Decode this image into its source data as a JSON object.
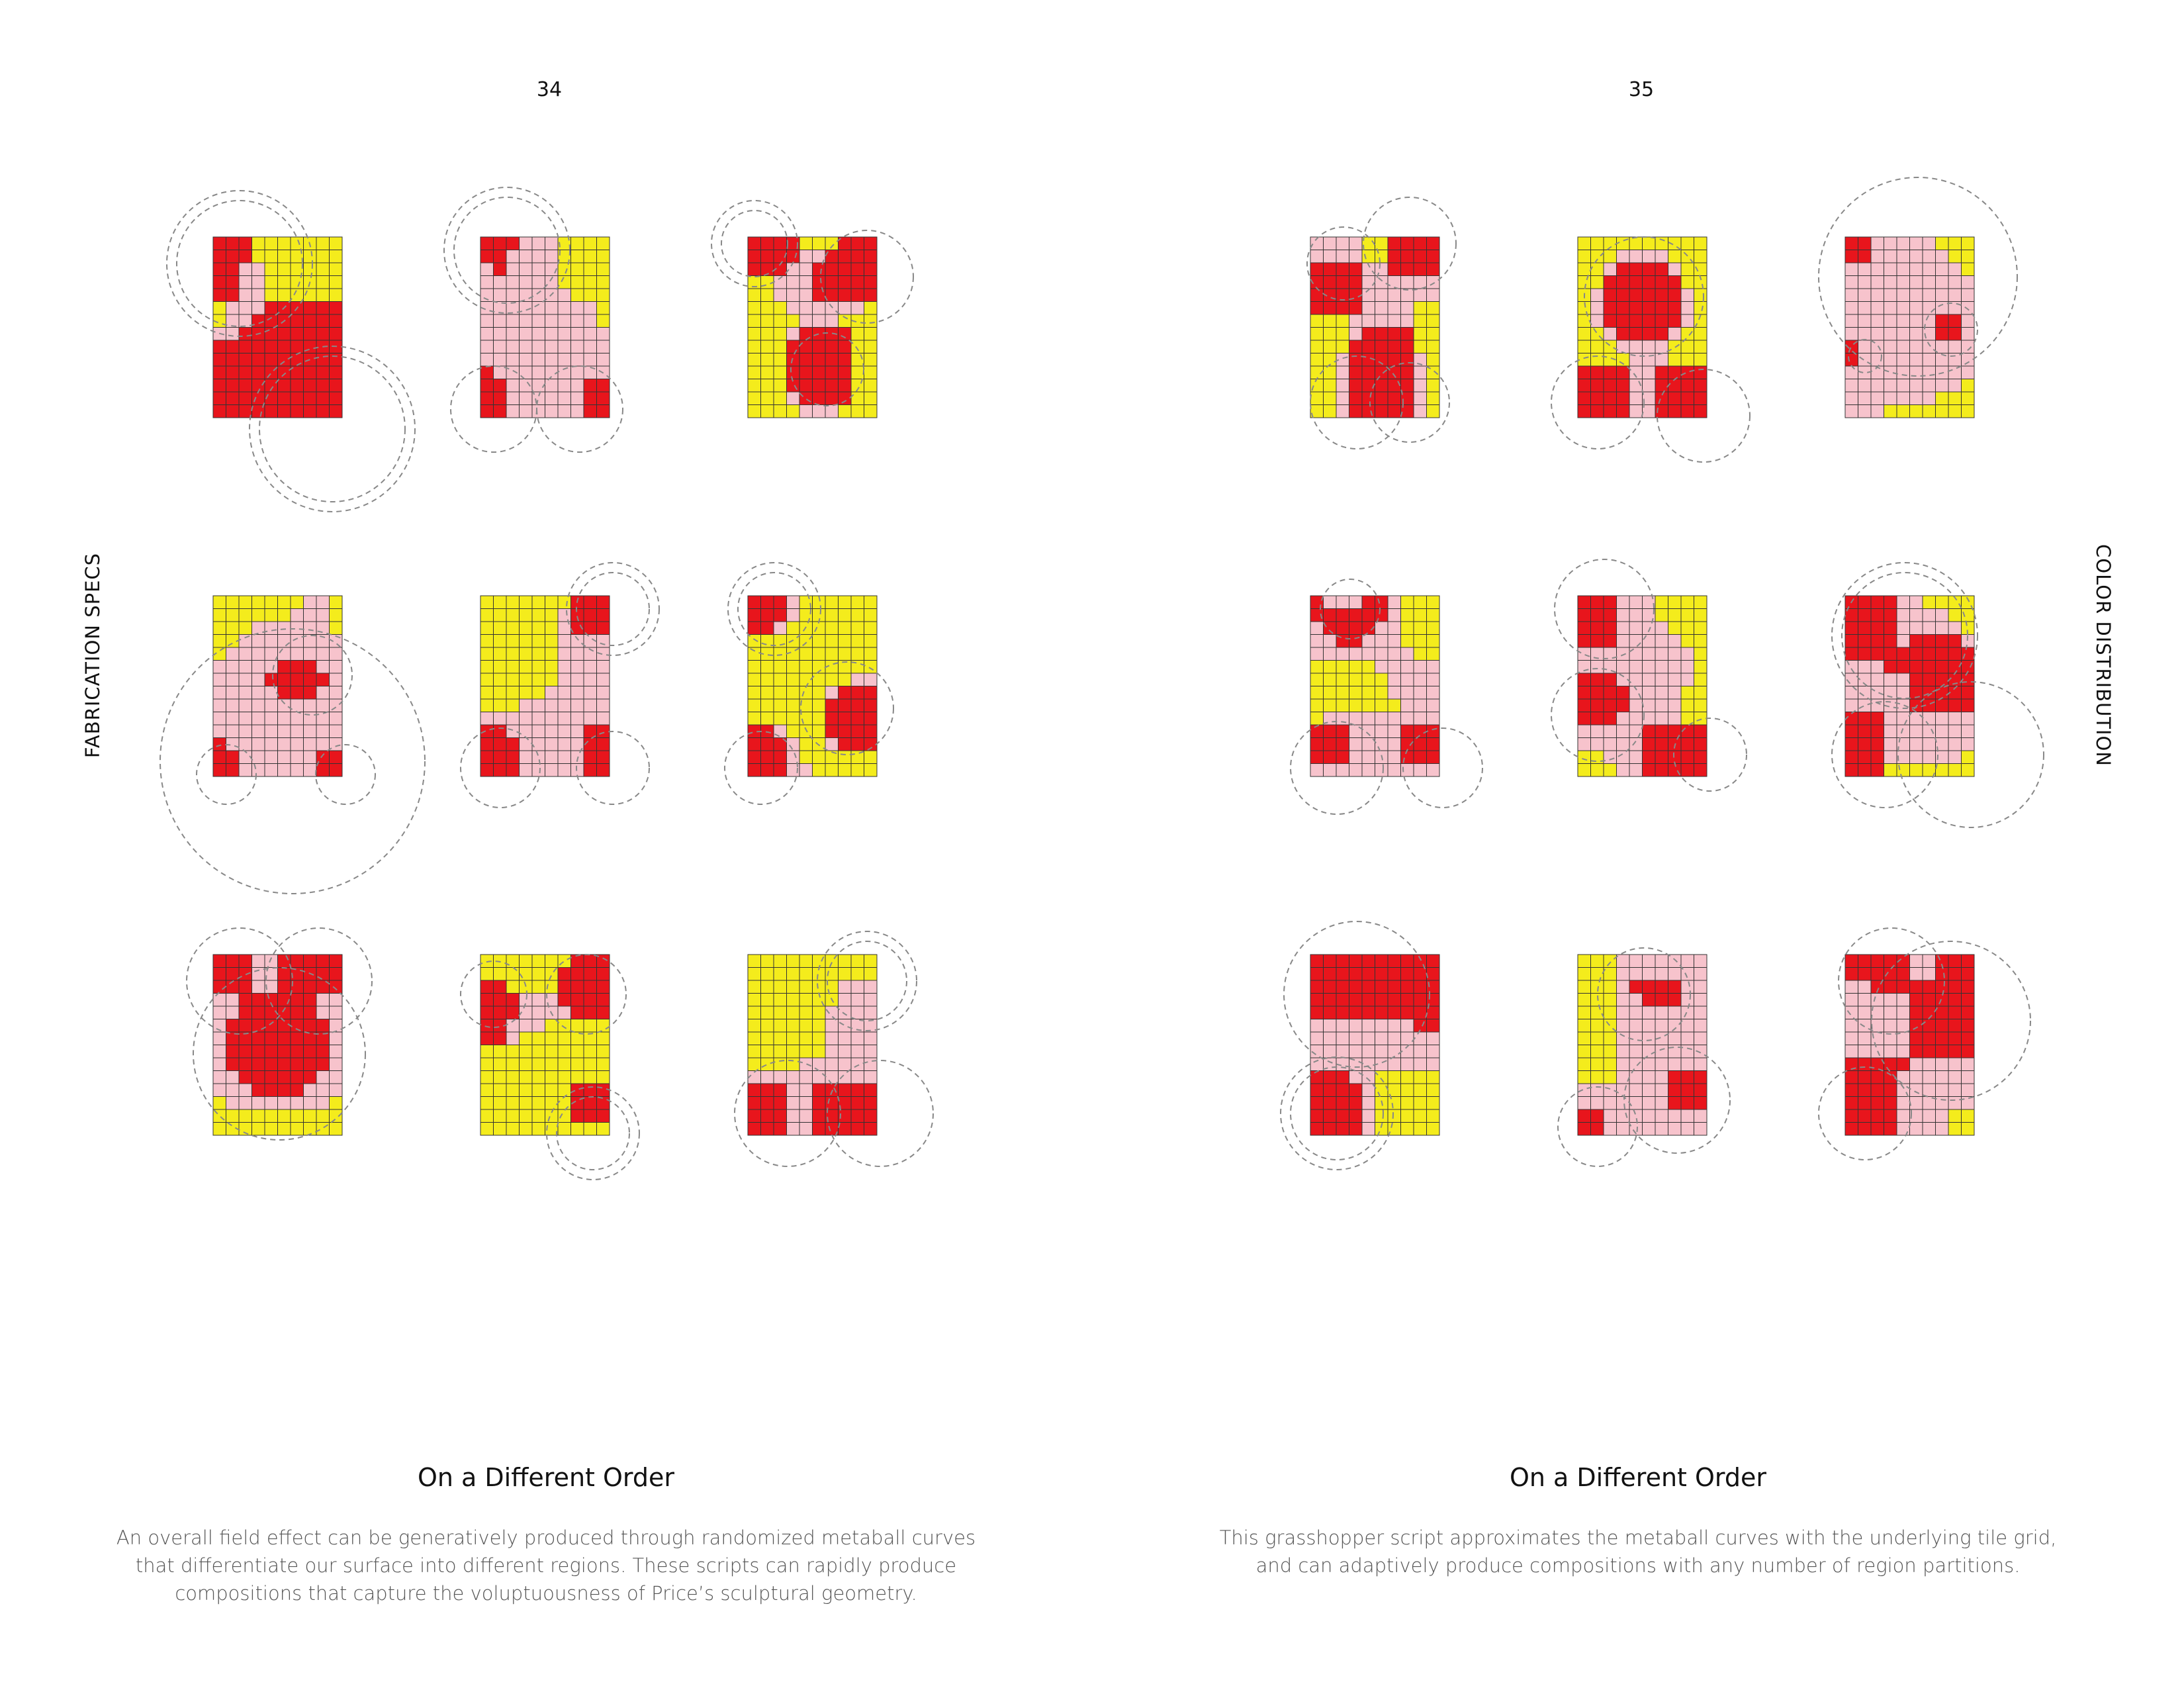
{
  "colors": {
    "red": "#e8151c",
    "pink": "#f7c3cc",
    "yellow": "#f4ec1c",
    "grid_line": "#333333",
    "curve": "#888888"
  },
  "left_page": {
    "page_number": "34",
    "side_label": "FABRICATION SPECS",
    "title": "On a Different Order",
    "caption_lines": [
      "An overall field effect can be generatively produced through randomized metaball curves",
      "that differentiate our surface into different regions. These scripts can rapidly produce",
      "compositions that capture the voluptuousness of Price’s sculptural geometry."
    ]
  },
  "right_page": {
    "page_number": "35",
    "side_label": "COLOR DISTRIBUTION",
    "title": "On a Different Order",
    "caption_lines": [
      "This grasshopper script approximates the metaball curves with the underlying tile grid,",
      "and can adaptively produce compositions with any number of region partitions."
    ]
  },
  "diagrams": [
    {
      "grid": [
        "RRRYYYYYYY",
        "RRRYYYYYYY",
        "RRPPYYYYYY",
        "RRPPYYYYYY",
        "RRPPYYYYYY",
        "YPPPRRRRRR",
        "YPPRRRRRRR",
        "PPRRRRRRRR",
        "RRRRRRRRRR",
        "RRRRRRRRRR",
        "RRRRRRRRRR",
        "RRRRRRRRRR",
        "RRRRRRRRRR",
        "RRRRRRRRRR"
      ]
    },
    {
      "grid": [
        "RRRPPPYYYY",
        "RRPPPPYYYY",
        "PRPPPPYYYY",
        "PPPPPPYYYY",
        "PPPPPPPYYY",
        "PPPPPPPPPY",
        "PPPPPPPPPY",
        "PPPPPPPPPP",
        "PPPPPPPPPP",
        "PPPPPPPPPP",
        "RPPPPPPPPP",
        "RRPPPPPPRR",
        "RRPPPPPPRR",
        "RRPPPPPPRR"
      ]
    },
    {
      "grid": [
        "RRRRYYYRRR",
        "RRRRPPRRRR",
        "RRRPPRRRRR",
        "YYPPPRRRRR",
        "YYPPPRRRRR",
        "YYYPPPPPPY",
        "YYYYPPPYYY",
        "YYYPRRRRYY",
        "YYYRRRRRYY",
        "YYYRRRRRYY",
        "YYYRRRRRYY",
        "YYYRRRRRYY",
        "YYYPRRRRYY",
        "YYYYPPPYYY"
      ]
    },
    {
      "grid": [
        "YYYYYYYPPY",
        "YYYYYYPPPY",
        "YYYPPPPPPY",
        "YYPPPPPPPP",
        "YPPPPPPPPP",
        "PPPPPRRRPP",
        "PPPPRRRRRP",
        "PPPPPRRRPP",
        "PPPPPPPPPP",
        "PPPPPPPPPP",
        "PPPPPPPPPP",
        "RPPPPPPPPP",
        "RRPPPPPPRR",
        "RRPPPPPPRR"
      ]
    },
    {
      "grid": [
        "YYYYYYYRRR",
        "YYYYYYPRRR",
        "YYYYYYPRRR",
        "YYYYYYPPPP",
        "YYYYYYPPPP",
        "YYYYYYPPPP",
        "YYYYYYPPPP",
        "YYYYYPPPPP",
        "YYYPPPPPPP",
        "PPPPPPPPPP",
        "RRPPPPPPRR",
        "RRRPPPPPRR",
        "RRRPPPPPRR",
        "RRRPPPPPRR"
      ]
    },
    {
      "grid": [
        "RRRPYYYYYY",
        "RRRPYYYYYY",
        "RRPYYYYYYY",
        "YYYYYYYYYY",
        "YYYYYYYYYY",
        "YYYYYYYYYY",
        "YYYYYYYYPP",
        "YYYYYYPRRR",
        "YYYYYYRRRR",
        "YYYYYYRRRR",
        "RRPYYYRRRR",
        "RRRPYYPRRR",
        "RRRPYYYYYY",
        "RRRPPYYYYY"
      ]
    },
    {
      "grid": [
        "RRRPPRRRRR",
        "RRRPPRRRRR",
        "RRRPPRRRRR",
        "PPRRRRRRPP",
        "PPRRRRRRPP",
        "PRRRRRRRRP",
        "PRRRRRRRRP",
        "PRRRRRRRRP",
        "PRRRRRRRRP",
        "PPRRRRRRPP",
        "PPPRRRRPPP",
        "YPPPPPPPPY",
        "YYYYYYYYYY",
        "YYYYYYYYYY"
      ]
    },
    {
      "grid": [
        "YYYYYYYRRR",
        "YYYYYYRRRR",
        "RRYYYYRRRR",
        "RRRPPPRRRR",
        "RRRPPPPRRR",
        "RRPPPYYYYY",
        "RRPYYYYYYY",
        "YYYYYYYYYY",
        "YYYYYYYYYY",
        "YYYYYYYYYY",
        "YYYYYYYRRR",
        "YYYYYYYRRR",
        "YYYYYYYRRR",
        "YYYYYYYYYY"
      ]
    },
    {
      "grid": [
        "YYYYYYYYYY",
        "YYYYYYYYYY",
        "YYYYYYYPPP",
        "YYYYYYYPPP",
        "YYYYYYPPPP",
        "YYYYYYPPPP",
        "YYYYYYPPPP",
        "YYYYYYPPPP",
        "YYYYPPPPPP",
        "PPPPPPPPPP",
        "RRRPPRRRRR",
        "RRRPPRRRRR",
        "RRRPPRRRRR",
        "RRRPPRRRRR"
      ]
    },
    {
      "grid": [
        "PPPPYYRRRR",
        "PPPPYYRRRR",
        "RRRRPPRRRR",
        "RRRRPPPPPP",
        "RRRRPPPPPP",
        "RRRRPPPPYY",
        "YYYPPPPPYY",
        "YYYPRRRRYY",
        "YYYRRRRRYY",
        "YYPRRRRRPY",
        "YYPRRRRRPY",
        "YYPRRRRRPY",
        "YYPRRRRRPY",
        "YYPRRRRRPY"
      ]
    },
    {
      "grid": [
        "YYYYYYYYYY",
        "YYYPPPPYYY",
        "YYPRRRRPYY",
        "YYRRRRRRYY",
        "YPRRRRRRPY",
        "YPRRRRRRPY",
        "YPRRRRRRPY",
        "YYPRRRRPYY",
        "YYYPPPPYYY",
        "YYYYPPPYYY",
        "RRRRPPRRRR",
        "RRRRPPRRRR",
        "RRRRPPRRRR",
        "RRRRPPRRRR"
      ]
    },
    {
      "grid": [
        "RRPPPPPYYY",
        "RRPPPPPPYY",
        "PPPPPPPPPY",
        "PPPPPPPPPP",
        "PPPPPPPPPP",
        "PPPPPPPPPP",
        "PPPPPPPRRP",
        "PPPPPPPRRP",
        "RPPPPPPPPP",
        "RPPPPPPPPP",
        "PPPPPPPPPP",
        "PPPPPPPPPY",
        "PPPPPPPYYY",
        "PPPYYYYYYY"
      ]
    },
    {
      "grid": [
        "RPPPRRPYYY",
        "RRRRRRPYYY",
        "PRRRRPPYYY",
        "PPRRPPPYYY",
        "PPPPPPPPYY",
        "YYYYYPPPPP",
        "YYYYYYPPPP",
        "YYYYYYPPPP",
        "YYYYYYYPPP",
        "YPPPPPPPPP",
        "RRRPPPPRRR",
        "RRRPPPPRRR",
        "RRRPPPPRRR",
        "PPPPPPPPPP"
      ]
    },
    {
      "grid": [
        "RRRPPPYYYY",
        "RRRPPPYYYY",
        "RRRPPPPYYY",
        "RRRPPPPPYY",
        "PPPPPPPPPY",
        "PPPPPPPPPY",
        "RRRPPPPPPY",
        "RRRRPPPPYY",
        "RRRRPPPPYY",
        "RRRPPPPPYY",
        "PPPPPRRRRR",
        "PPPPPRRRRR",
        "YYPPPRRRRR",
        "YYYPPRRRRR"
      ]
    },
    {
      "grid": [
        "RRRRPPYYYY",
        "RRRRPPPPYY",
        "RRRRPPPPPY",
        "RRRRPRRRRP",
        "RRRRRRRRRR",
        "PPPRRRRRRR",
        "PPPPPRRRRR",
        "PPPPPRRRRR",
        "PPPPPRRRRR",
        "RRRPPPPPPP",
        "RRRPPPPPPP",
        "RRRPPPPPPP",
        "RRRPPPPPPY",
        "RRRYYYYYYY"
      ]
    },
    {
      "grid": [
        "RRRRRRRRRR",
        "RRRRRRRRRR",
        "RRRRRRRRRR",
        "RRRRRRRRRR",
        "RRRRRRRRRR",
        "PPPPPPPPRR",
        "PPPPPPPPPP",
        "PPPPPPPPPP",
        "PPPPPPPPPP",
        "RRRPPYYYYY",
        "RRRRPYYYYY",
        "RRRRPYYYYY",
        "RRRRPYYYYY",
        "RRRRPYYYYY"
      ]
    },
    {
      "grid": [
        "YYYPPPPPPP",
        "YYYPPPPPPP",
        "YYYPRRRRPP",
        "YYYPPRRRPP",
        "YYYPPPPPPP",
        "YYYPPPPPPP",
        "YYYPPPPPPP",
        "YYYPPPPPPP",
        "YYYPPPPPPP",
        "YYYPPPPRRR",
        "PPPPPPPRRR",
        "PPPPPPPRRR",
        "RRPPPPPPPP",
        "RRPPPPPPPP"
      ]
    },
    {
      "grid": [
        "RRRRRPPRRR",
        "RRRRRPPRRR",
        "PPRRRRRRRR",
        "PPPPPRRRRR",
        "PPPPPRRRRR",
        "PPPPPRRRRR",
        "PPPPPRRRRR",
        "PPPPPRRRRR",
        "RRRRRPPPPP",
        "RRRRPPPPPP",
        "RRRRPPPPPP",
        "RRRRPPPPPP",
        "RRRRPPPPYY",
        "RRRRPPPPYY"
      ]
    }
  ]
}
